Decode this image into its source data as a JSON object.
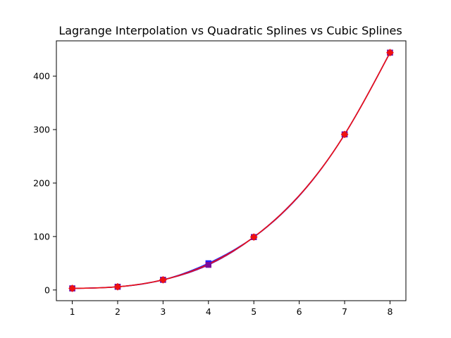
{
  "chart_data": {
    "type": "line",
    "title": "Lagrange Interpolation vs Quadratic Splines vs Cubic Splines",
    "xlabel": "",
    "ylabel": "",
    "xlim": [
      0.65,
      8.35
    ],
    "ylim": [
      -20,
      466
    ],
    "xticks": [
      1,
      2,
      3,
      4,
      5,
      6,
      7,
      8
    ],
    "yticks": [
      0,
      100,
      200,
      300,
      400
    ],
    "grid": false,
    "legend": "none",
    "series": [
      {
        "marker": "square",
        "color": "#1f1fff",
        "x": [
          1,
          2,
          3,
          4,
          5,
          7,
          8
        ],
        "y": [
          3,
          6,
          19,
          50,
          99,
          291,
          444
        ]
      },
      {
        "marker": "square",
        "color": "#7a0a9a",
        "x": [
          1,
          2,
          3,
          4,
          5,
          7,
          8
        ],
        "y": [
          3,
          6,
          19,
          47,
          99,
          291,
          444
        ]
      },
      {
        "marker": "diamond",
        "color": "#ee1111",
        "x": [
          1,
          2,
          3,
          5,
          7,
          8
        ],
        "y": [
          3,
          6,
          19,
          99,
          291,
          444
        ]
      }
    ]
  }
}
